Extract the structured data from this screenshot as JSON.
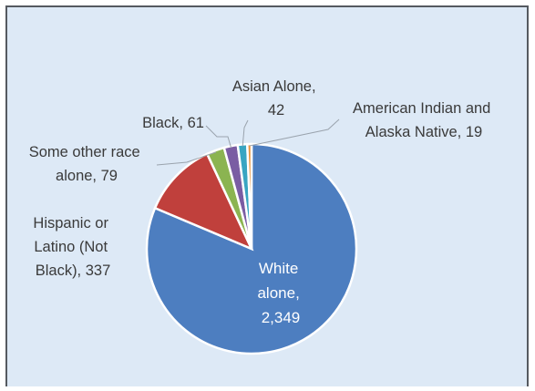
{
  "chart_data": {
    "type": "pie",
    "slices": [
      {
        "label_lines": [
          "White",
          "alone,",
          "2,349"
        ],
        "value": 2349,
        "color": "#4d7ec0"
      },
      {
        "label_lines": [
          "Hispanic or",
          "Latino (Not",
          "Black), 337"
        ],
        "value": 337,
        "color": "#c0403c"
      },
      {
        "label_lines": [
          "Some other race",
          "alone,  79"
        ],
        "value": 79,
        "color": "#8bb451"
      },
      {
        "label_lines": [
          "Black,  61"
        ],
        "value": 61,
        "color": "#7a5da3"
      },
      {
        "label_lines": [
          "Asian Alone,",
          "42"
        ],
        "value": 42,
        "color": "#38a5c2"
      },
      {
        "label_lines": [
          "American Indian and",
          "Alaska Native,  19"
        ],
        "value": 19,
        "color": "#e8963f"
      }
    ]
  }
}
